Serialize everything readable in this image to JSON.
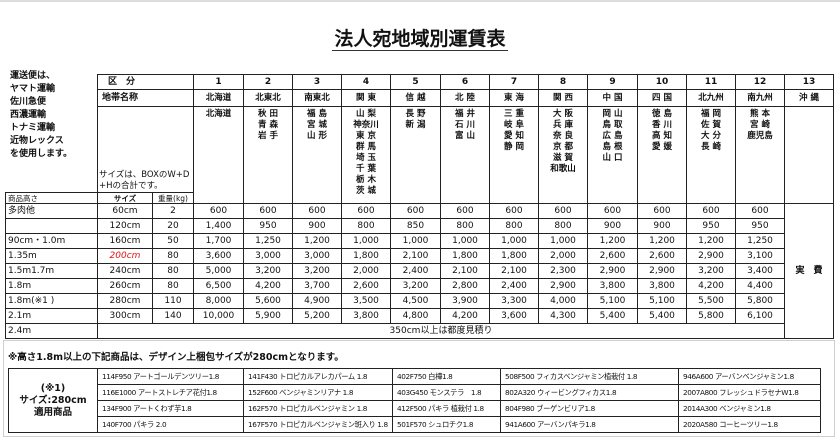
{
  "title": "法人宛地域別運賃表",
  "carrier_note": [
    "運送便は、",
    "ヤマト運輸",
    "佐川急便",
    "西濃運輸",
    "トナミ運輸",
    "近物レックス",
    "を使用します。"
  ],
  "header": {
    "kubun_label": "区　分",
    "zone_name_label": "地帯名称",
    "size_note": "サイズは、BOXのW+D+Hの合計です。",
    "height_label": "商品高さ",
    "size_label": "サイズ",
    "weight_label": "重量(kg)"
  },
  "zones": [
    {
      "no": "1",
      "name": "北海道",
      "prefs": [
        "北海道"
      ]
    },
    {
      "no": "2",
      "name": "北東北",
      "prefs": [
        "秋 田",
        "青 森",
        "岩 手"
      ]
    },
    {
      "no": "3",
      "name": "南東北",
      "prefs": [
        "福 島",
        "宮 城",
        "山 形"
      ]
    },
    {
      "no": "4",
      "name": "関 東",
      "prefs": [
        "山 梨",
        "神奈川",
        "東 京",
        "群 馬",
        "埼 玉",
        "千 葉",
        "栃 木",
        "茨 城"
      ]
    },
    {
      "no": "5",
      "name": "信 越",
      "prefs": [
        "長 野",
        "新 潟"
      ]
    },
    {
      "no": "6",
      "name": "北 陸",
      "prefs": [
        "福 井",
        "石 川",
        "富 山"
      ]
    },
    {
      "no": "7",
      "name": "東 海",
      "prefs": [
        "三 重",
        "岐 阜",
        "愛 知",
        "静 岡"
      ]
    },
    {
      "no": "8",
      "name": "関 西",
      "prefs": [
        "大 阪",
        "兵 庫",
        "奈 良",
        "京 都",
        "滋 賀",
        "和歌山"
      ]
    },
    {
      "no": "9",
      "name": "中 国",
      "prefs": [
        "岡 山",
        "鳥 取",
        "広 島",
        "島 根",
        "山 口"
      ]
    },
    {
      "no": "10",
      "name": "四 国",
      "prefs": [
        "徳 島",
        "香 川",
        "高 知",
        "愛 媛"
      ]
    },
    {
      "no": "11",
      "name": "北九州",
      "prefs": [
        "福 岡",
        "佐 賀",
        "大 分",
        "長 崎"
      ]
    },
    {
      "no": "12",
      "name": "南九州",
      "prefs": [
        "熊 本",
        "宮 崎",
        "鹿児島"
      ]
    },
    {
      "no": "13",
      "name": "沖 縄",
      "prefs": []
    }
  ],
  "rows": [
    {
      "height": "多肉他",
      "size": "60cm",
      "weight": "2",
      "prices": [
        "600",
        "600",
        "600",
        "600",
        "600",
        "600",
        "600",
        "600",
        "600",
        "600",
        "600",
        "600"
      ]
    },
    {
      "height": "",
      "size": "120cm",
      "weight": "20",
      "prices": [
        "1,400",
        "950",
        "900",
        "800",
        "850",
        "800",
        "800",
        "800",
        "900",
        "900",
        "950",
        "950"
      ]
    },
    {
      "height": "90cm・1.0m",
      "size": "160cm",
      "weight": "50",
      "prices": [
        "1,700",
        "1,250",
        "1,200",
        "1,000",
        "1,000",
        "1,000",
        "1,000",
        "1,000",
        "1,200",
        "1,200",
        "1,200",
        "1,250"
      ]
    },
    {
      "height": "1.35m",
      "size": "200cm",
      "size_highlight": true,
      "weight": "80",
      "prices": [
        "3,600",
        "3,000",
        "3,000",
        "1,800",
        "2,100",
        "1,800",
        "1,800",
        "2,000",
        "2,600",
        "2,600",
        "2,900",
        "3,100"
      ]
    },
    {
      "height": "1.5m1.7m",
      "size": "240cm",
      "weight": "80",
      "prices": [
        "5,000",
        "3,200",
        "3,200",
        "2,000",
        "2,400",
        "2,100",
        "2,100",
        "2,300",
        "2,900",
        "2,900",
        "3,200",
        "3,400"
      ]
    },
    {
      "height": "1.8m",
      "size": "260cm",
      "weight": "80",
      "prices": [
        "6,500",
        "4,200",
        "3,700",
        "2,600",
        "3,200",
        "2,800",
        "2,400",
        "2,900",
        "3,800",
        "3,800",
        "4,200",
        "4,400"
      ]
    },
    {
      "height": "1.8m(※1 )",
      "size": "280cm",
      "weight": "110",
      "prices": [
        "8,000",
        "5,600",
        "4,900",
        "3,500",
        "4,500",
        "3,900",
        "3,300",
        "4,000",
        "5,100",
        "5,100",
        "5,500",
        "5,800"
      ]
    },
    {
      "height": "2.1m",
      "size": "300cm",
      "weight": "140",
      "prices": [
        "10,000",
        "5,900",
        "5,200",
        "3,800",
        "4,800",
        "4,200",
        "3,600",
        "4,300",
        "5,400",
        "5,400",
        "5,800",
        "6,100"
      ]
    }
  ],
  "last_row": {
    "height": "2.4m",
    "note": "350cm以上は都度見積り"
  },
  "okinawa_price": "実　費",
  "highlight_color": "#e01010",
  "footnote": "※高さ1.8m以上の下記商品は、デザイン上梱包サイズが280cmとなります。",
  "products_label": [
    "(※1)",
    "サイズ:280cm",
    "適用商品"
  ],
  "products": [
    [
      "114F950 アートゴールデンツリー1.8",
      "141F430 トロピカルアレカパーム 1.8",
      "402F750 白樺1.8",
      "508F500 フィカスベンジャミン植栽付 1.8",
      "946A600 アーバンベンジャミン1.8"
    ],
    [
      "116E1000 アートストレチア花付1.8",
      "152F600 ベンジャミンリアナ 1.8",
      "403G450 モンステラ　1.8",
      "802A320 ウィービングフィカス1.8",
      "2007A800 フレッシュドラセナW1.8"
    ],
    [
      "134F900 アートくわず芋1.8",
      "162F570 トロピカルベンジャミン 1.8",
      "412F500 パキラ 植栽付 1.8",
      "804F980 ブーゲンビリア1.8",
      "2014A300 ベンジャミン1.8"
    ],
    [
      "140F700 パキラ 2.0",
      "167F570 トロピカルベンジャミン斑入り 1.8",
      "501F570 シュロチク1.8",
      "941A600 アーバンパキラ1.8",
      "2020A580 コーヒーツリー1.8"
    ]
  ]
}
